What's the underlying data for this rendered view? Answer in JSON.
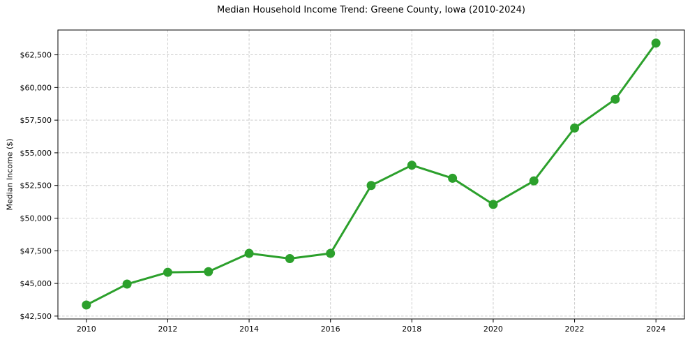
{
  "chart_data": {
    "type": "line",
    "title": "Median Household Income Trend: Greene County, Iowa (2010-2024)",
    "xlabel": "",
    "ylabel": "Median Income ($)",
    "series": [
      {
        "name": "Median household income",
        "x": [
          2010,
          2011,
          2012,
          2013,
          2014,
          2015,
          2016,
          2017,
          2018,
          2019,
          2020,
          2021,
          2022,
          2023,
          2024
        ],
        "values": [
          43350,
          44950,
          45850,
          45900,
          47300,
          46900,
          47300,
          52500,
          54050,
          53050,
          51050,
          52850,
          56900,
          59100,
          63400
        ],
        "line_color": "#2ca02c",
        "marker": "circle",
        "marker_color": "#2ca02c"
      }
    ],
    "xticks": [
      2010,
      2012,
      2014,
      2016,
      2018,
      2020,
      2022,
      2024
    ],
    "ytick_values": [
      42500,
      45000,
      47500,
      50000,
      52500,
      55000,
      57500,
      60000,
      62500
    ],
    "ytick_labels": [
      "$42,500",
      "$45,000",
      "$47,500",
      "$50,000",
      "$52,500",
      "$55,000",
      "$57,500",
      "$60,000",
      "$62,500"
    ],
    "xlim": [
      2009.3,
      2024.7
    ],
    "ylim": [
      42280,
      64400
    ],
    "grid": "both-dashed",
    "legend": "none",
    "grid_color": "#cccccc",
    "frame_color": "#000000",
    "background": "#ffffff"
  }
}
